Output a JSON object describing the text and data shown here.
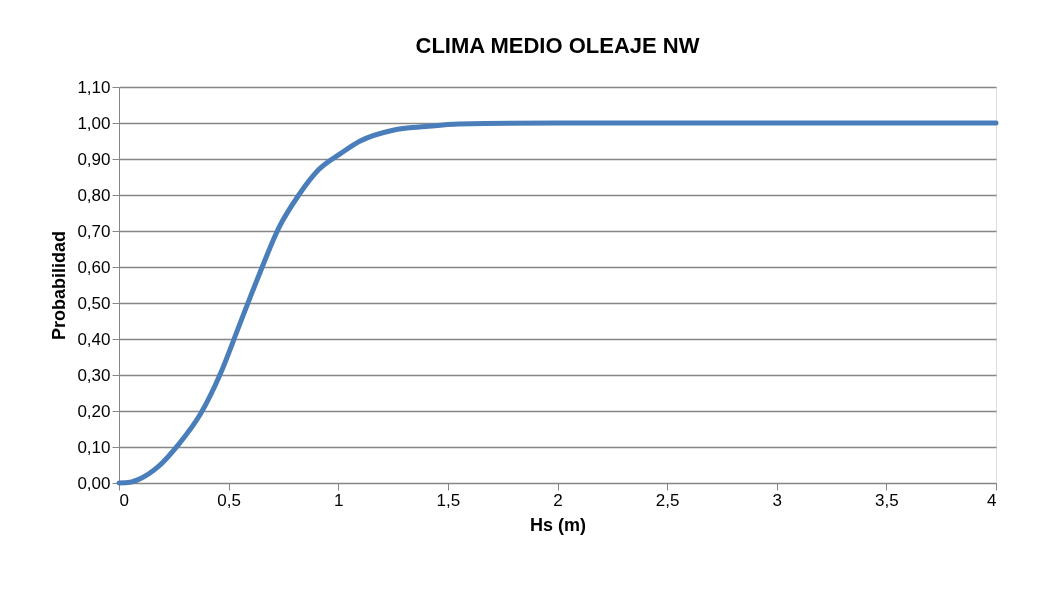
{
  "chart_data": {
    "type": "line",
    "title": "CLIMA MEDIO OLEAJE NW",
    "xlabel": "Hs (m)",
    "ylabel": "Probabilidad",
    "x": [
      0,
      0.05,
      0.09,
      0.18,
      0.27,
      0.37,
      0.46,
      0.55,
      0.64,
      0.73,
      0.82,
      0.91,
      1.01,
      1.1,
      1.25,
      1.4,
      1.55,
      2,
      2.5,
      3,
      3.5,
      4
    ],
    "series": [
      {
        "color": "#4a7ebb",
        "values": [
          0,
          0.002,
          0.01,
          0.046,
          0.106,
          0.19,
          0.3,
          0.44,
          0.58,
          0.71,
          0.8,
          0.87,
          0.915,
          0.95,
          0.98,
          0.99,
          0.997,
          1,
          1,
          1,
          1,
          1
        ]
      }
    ],
    "xlim": [
      0,
      4
    ],
    "xticks": [
      {
        "value": 0,
        "label": "0"
      },
      {
        "value": 0.5,
        "label": "0,5"
      },
      {
        "value": 1,
        "label": "1"
      },
      {
        "value": 1.5,
        "label": "1,5"
      },
      {
        "value": 2,
        "label": "2"
      },
      {
        "value": 2.5,
        "label": "2,5"
      },
      {
        "value": 3,
        "label": "3"
      },
      {
        "value": 3.5,
        "label": "3,5"
      },
      {
        "value": 4,
        "label": "4"
      }
    ],
    "ylim": [
      0,
      1.1
    ],
    "yticks": [
      {
        "value": 0,
        "label": "0,00"
      },
      {
        "value": 0.1,
        "label": "0,10"
      },
      {
        "value": 0.2,
        "label": "0,20"
      },
      {
        "value": 0.3,
        "label": "0,30"
      },
      {
        "value": 0.4,
        "label": "0,40"
      },
      {
        "value": 0.5,
        "label": "0,50"
      },
      {
        "value": 0.6,
        "label": "0,60"
      },
      {
        "value": 0.7,
        "label": "0,70"
      },
      {
        "value": 0.8,
        "label": "0,80"
      },
      {
        "value": 0.9,
        "label": "0,90"
      },
      {
        "value": 1,
        "label": "1,00"
      },
      {
        "value": 1.1,
        "label": "1,10"
      }
    ],
    "grid": "y",
    "marker": "none",
    "line_style": "solid"
  }
}
